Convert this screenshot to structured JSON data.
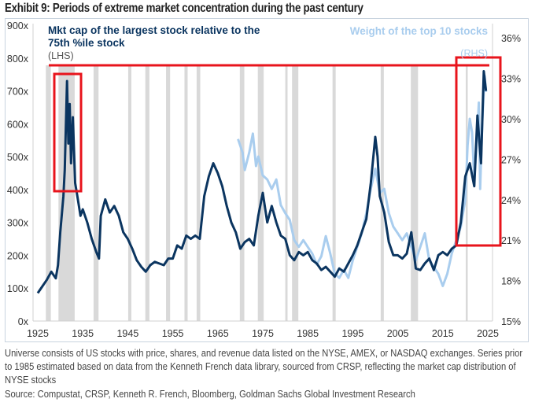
{
  "title": "Exhibit 9: Periods of extreme market concentration during the past century",
  "footnote": "Universe consists of US stocks with price, shares, and revenue data listed on the NYSE, AMEX, or NASDAQ exchanges. Series prior to 1985 estimated based on data from the Kenneth French data library, sourced from CRSP, reflecting the market cap distribution of NYSE stocks",
  "source": "Source: Compustat, CRSP, Kenneth R. French, Bloomberg, Goldman Sachs Global Investment Research",
  "chart_data": {
    "type": "line",
    "title": "Exhibit 9: Periods of extreme market concentration during the past century",
    "x_ticks": [
      "1925",
      "1935",
      "1945",
      "1955",
      "1965",
      "1975",
      "1985",
      "1995",
      "2005",
      "2015",
      "2025"
    ],
    "xlim": [
      1925,
      2025
    ],
    "y_left": {
      "ticks": [
        "0x",
        "100x",
        "200x",
        "300x",
        "400x",
        "500x",
        "600x",
        "700x",
        "800x",
        "900x"
      ],
      "lim": [
        0,
        900
      ]
    },
    "y_right": {
      "ticks": [
        "15%",
        "18%",
        "21%",
        "24%",
        "27%",
        "30%",
        "33%",
        "36%"
      ],
      "lim": [
        15,
        36.5
      ]
    },
    "grid": false,
    "colors": {
      "lhs": "#0b3560",
      "rhs": "#a9cdee",
      "highlight": "#e8141c",
      "recession": "#d9d9d9"
    },
    "recession_shading": [
      [
        1926.8,
        1927.9
      ],
      [
        1929.6,
        1933.2
      ],
      [
        1937.4,
        1938.5
      ],
      [
        1945.1,
        1945.8
      ],
      [
        1948.9,
        1949.8
      ],
      [
        1953.5,
        1954.4
      ],
      [
        1957.6,
        1958.3
      ],
      [
        1960.3,
        1961.1
      ],
      [
        1969.9,
        1970.9
      ],
      [
        1973.9,
        1975.2
      ],
      [
        1980.0,
        1980.5
      ],
      [
        1981.5,
        1982.9
      ],
      [
        1990.5,
        1991.2
      ],
      [
        2001.2,
        2001.9
      ],
      [
        2007.9,
        2009.5
      ],
      [
        2020.1,
        2020.4
      ]
    ],
    "series": [
      {
        "name": "Mkt cap of the largest stock relative to the 75th %ile stock",
        "axis_label": "(LHS)",
        "axis": "left",
        "x": [
          1925,
          1926,
          1927,
          1928,
          1929,
          1929.5,
          1930,
          1930.7,
          1931,
          1931.5,
          1931.8,
          1932.1,
          1932.4,
          1932.8,
          1933.3,
          1933.8,
          1934.5,
          1935,
          1936,
          1937,
          1938,
          1938.6,
          1939,
          1940,
          1941,
          1942,
          1943,
          1944,
          1945,
          1946,
          1947,
          1948,
          1949,
          1950,
          1951,
          1952,
          1953,
          1954,
          1955,
          1956,
          1957,
          1958,
          1959,
          1960,
          1961,
          1962,
          1963,
          1964,
          1965,
          1966,
          1967,
          1968,
          1969,
          1970,
          1971,
          1972,
          1973,
          1974,
          1975,
          1976,
          1977,
          1978,
          1979,
          1980,
          1981,
          1982,
          1983,
          1984,
          1985,
          1986,
          1987,
          1988,
          1989,
          1990,
          1991,
          1992,
          1993,
          1994,
          1995,
          1996,
          1997,
          1998,
          1999,
          2000,
          2000.5,
          2001,
          2002,
          2003,
          2004,
          2005,
          2006,
          2007,
          2008,
          2009,
          2010,
          2011,
          2012,
          2013,
          2014,
          2015,
          2016,
          2017,
          2018,
          2019,
          2020,
          2021,
          2022,
          2022.7,
          2023.5,
          2024.1,
          2024.6
        ],
        "values": [
          85,
          105,
          125,
          150,
          130,
          170,
          270,
          380,
          460,
          730,
          540,
          660,
          480,
          620,
          420,
          380,
          320,
          340,
          300,
          250,
          210,
          190,
          320,
          370,
          330,
          350,
          320,
          270,
          250,
          220,
          185,
          165,
          150,
          170,
          180,
          175,
          170,
          190,
          190,
          230,
          220,
          260,
          250,
          260,
          250,
          380,
          440,
          480,
          450,
          410,
          350,
          300,
          270,
          220,
          240,
          250,
          230,
          320,
          390,
          300,
          350,
          300,
          260,
          250,
          200,
          185,
          210,
          200,
          210,
          185,
          175,
          155,
          165,
          150,
          135,
          160,
          150,
          175,
          200,
          230,
          270,
          310,
          420,
          560,
          500,
          380,
          330,
          240,
          200,
          200,
          190,
          205,
          270,
          160,
          155,
          175,
          190,
          155,
          200,
          210,
          200,
          220,
          230,
          300,
          440,
          480,
          410,
          625,
          480,
          760,
          700
        ]
      },
      {
        "name": "Weight of the top 10 stocks",
        "axis_label": "(RHS)",
        "axis": "right",
        "x": [
          1969.5,
          1970.5,
          1971,
          1972,
          1972.8,
          1973.5,
          1974,
          1975,
          1976,
          1977,
          1978,
          1979,
          1980,
          1981,
          1982,
          1983,
          1984,
          1985,
          1986,
          1987,
          1988,
          1989,
          1990,
          1991,
          1992,
          1993,
          1994,
          1995,
          1996,
          1997,
          1998,
          1999,
          2000,
          2001,
          2002,
          2003,
          2004,
          2005,
          2006,
          2007,
          2008,
          2009,
          2010,
          2011,
          2012,
          2013,
          2014,
          2015,
          2016,
          2017,
          2018,
          2019,
          2020,
          2020.5,
          2021,
          2021.5,
          2022,
          2022.6,
          2023,
          2023.3,
          2023.8,
          2024.3,
          2024.6
        ],
        "values": [
          28.5,
          27.5,
          26.2,
          27.5,
          28.9,
          26.5,
          27.2,
          25.8,
          25.5,
          24.8,
          25.5,
          23.6,
          23.0,
          22.5,
          21.0,
          20.5,
          21.0,
          20.5,
          20.0,
          19.2,
          19.8,
          21.3,
          20.0,
          18.5,
          18.2,
          18.8,
          18.2,
          19.5,
          20.5,
          21.5,
          23.0,
          24.8,
          26.3,
          24.5,
          24.8,
          23.0,
          22.0,
          21.5,
          21.0,
          21.5,
          20.5,
          19.5,
          20.5,
          21.5,
          19.5,
          19.0,
          18.5,
          17.6,
          18.5,
          20.0,
          21.0,
          22.0,
          24.0,
          28.0,
          30.0,
          29.0,
          25.5,
          28.5,
          31.2,
          24.8,
          30.0,
          33.2,
          32.0
        ]
      }
    ],
    "annotations": [
      "highlight box around 1929-1933 peak",
      "highlight box around 2017-2024 surge",
      "horizontal line at recent peak level"
    ]
  }
}
